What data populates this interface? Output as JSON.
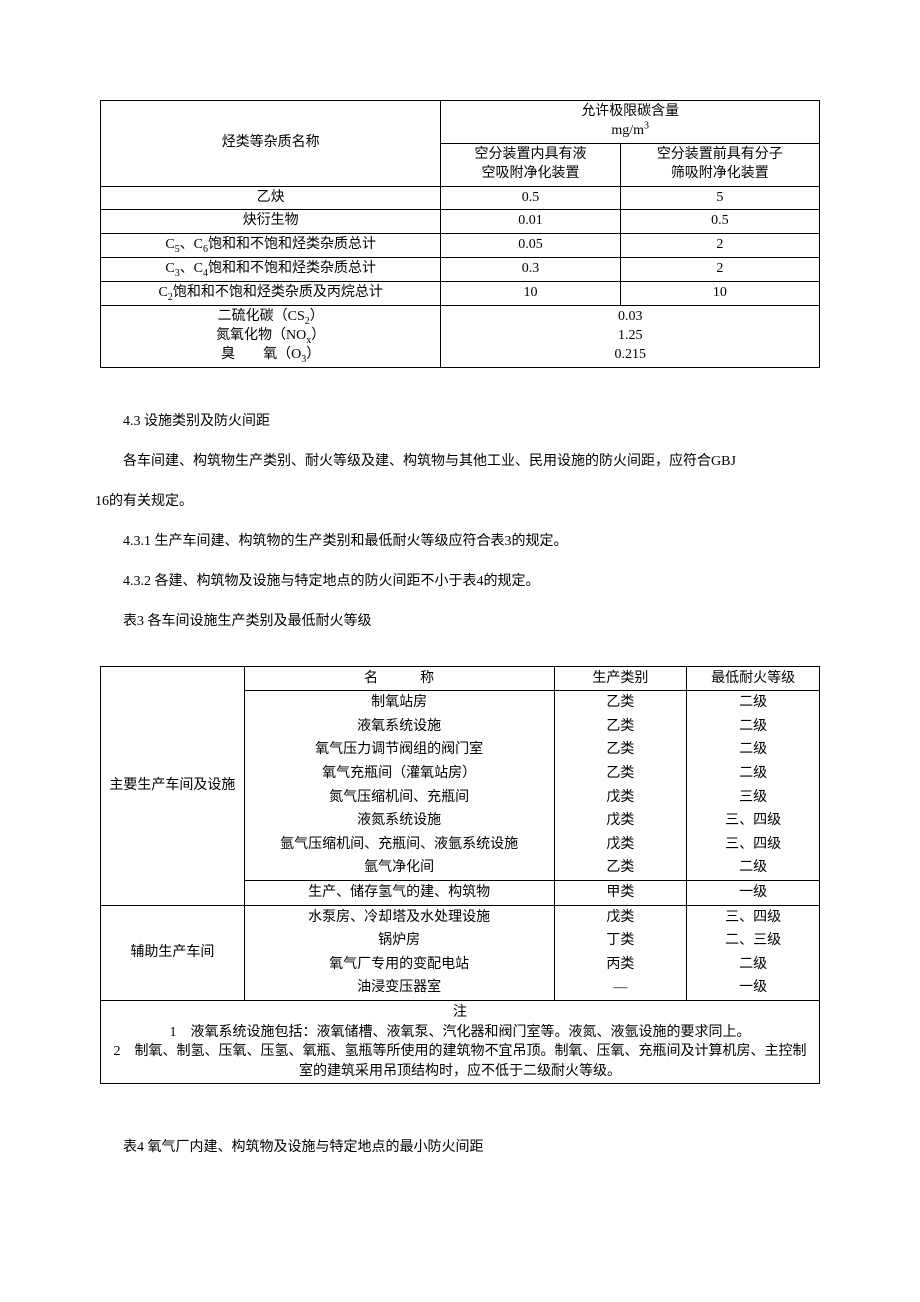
{
  "table1": {
    "header_name": "烃类等杂质名称",
    "header_limit": "允许极限碳含量",
    "header_unit": "mg/m³",
    "header_colA": "空分装置内具有液\n空吸附净化装置",
    "header_colB": "空分装置前具有分子\n筛吸附净化装置",
    "rows": [
      {
        "name": "乙炔",
        "a": "0.5",
        "b": "5"
      },
      {
        "name": "炔衍生物",
        "a": "0.01",
        "b": "0.5"
      },
      {
        "name": "C₅、C₆饱和和不饱和烃类杂质总计",
        "a": "0.05",
        "b": "2"
      },
      {
        "name": "C₃、C₄饱和和不饱和烃类杂质总计",
        "a": "0.3",
        "b": "2"
      },
      {
        "name": "C₂饱和和不饱和烃类杂质及丙烷总计",
        "a": "10",
        "b": "10"
      }
    ],
    "merged": [
      {
        "name": "二硫化碳（CS₂）",
        "v": "0.03"
      },
      {
        "name": "氮氧化物（NOₓ）",
        "v": "1.25"
      },
      {
        "name": "臭　　氧（O₃）",
        "v": "0.215"
      }
    ]
  },
  "paras": {
    "p43": "4.3 设施类别及防火间距",
    "p43_text_a": "各车间建、构筑物生产类别、耐火等级及建、构筑物与其他工业、民用设施的防火间距，应符合GBJ",
    "p43_text_b": "16的有关规定。",
    "p431": "4.3.1 生产车间建、构筑物的生产类别和最低耐火等级应符合表3的规定。",
    "p432": "4.3.2 各建、构筑物及设施与特定地点的防火间距不小于表4的规定。",
    "t3_caption": "表3 各车间设施生产类别及最低耐火等级",
    "t4_caption": "表4 氧气厂内建、构筑物及设施与特定地点的最小防火间距"
  },
  "table2": {
    "h_name": "名　　　称",
    "h_cat": "生产类别",
    "h_level": "最低耐火等级",
    "g1_label": "主要生产车间及设施",
    "g1": [
      {
        "n": "制氧站房",
        "c": "乙类",
        "l": "二级"
      },
      {
        "n": "液氧系统设施",
        "c": "乙类",
        "l": "二级"
      },
      {
        "n": "氧气压力调节阀组的阀门室",
        "c": "乙类",
        "l": "二级"
      },
      {
        "n": "氧气充瓶间（灌氧站房）",
        "c": "乙类",
        "l": "二级"
      },
      {
        "n": "氮气压缩机间、充瓶间",
        "c": "戊类",
        "l": "三级"
      },
      {
        "n": "液氮系统设施",
        "c": "戊类",
        "l": "三、四级"
      },
      {
        "n": "氩气压缩机间、充瓶间、液氩系统设施",
        "c": "戊类",
        "l": "三、四级"
      },
      {
        "n": "氩气净化间",
        "c": "乙类",
        "l": "二级"
      },
      {
        "n": "生产、储存氢气的建、构筑物",
        "c": "甲类",
        "l": "一级"
      }
    ],
    "g2_label": "辅助生产车间",
    "g2": [
      {
        "n": "水泵房、冷却塔及水处理设施",
        "c": "戊类",
        "l": "三、四级"
      },
      {
        "n": "锅炉房",
        "c": "丁类",
        "l": "二、三级"
      },
      {
        "n": "氧气厂专用的变配电站",
        "c": "丙类",
        "l": "二级"
      },
      {
        "n": "油浸变压器室",
        "c": "—",
        "l": "一级"
      }
    ],
    "note_label": "注",
    "note1": "1　液氧系统设施包括：液氧储槽、液氧泵、汽化器和阀门室等。液氮、液氩设施的要求同上。",
    "note2": "2　制氧、制氢、压氧、压氢、氧瓶、氢瓶等所使用的建筑物不宜吊顶。制氧、压氧、充瓶间及计算机房、主控制室的建筑采用吊顶结构时，应不低于二级耐火等级。"
  }
}
